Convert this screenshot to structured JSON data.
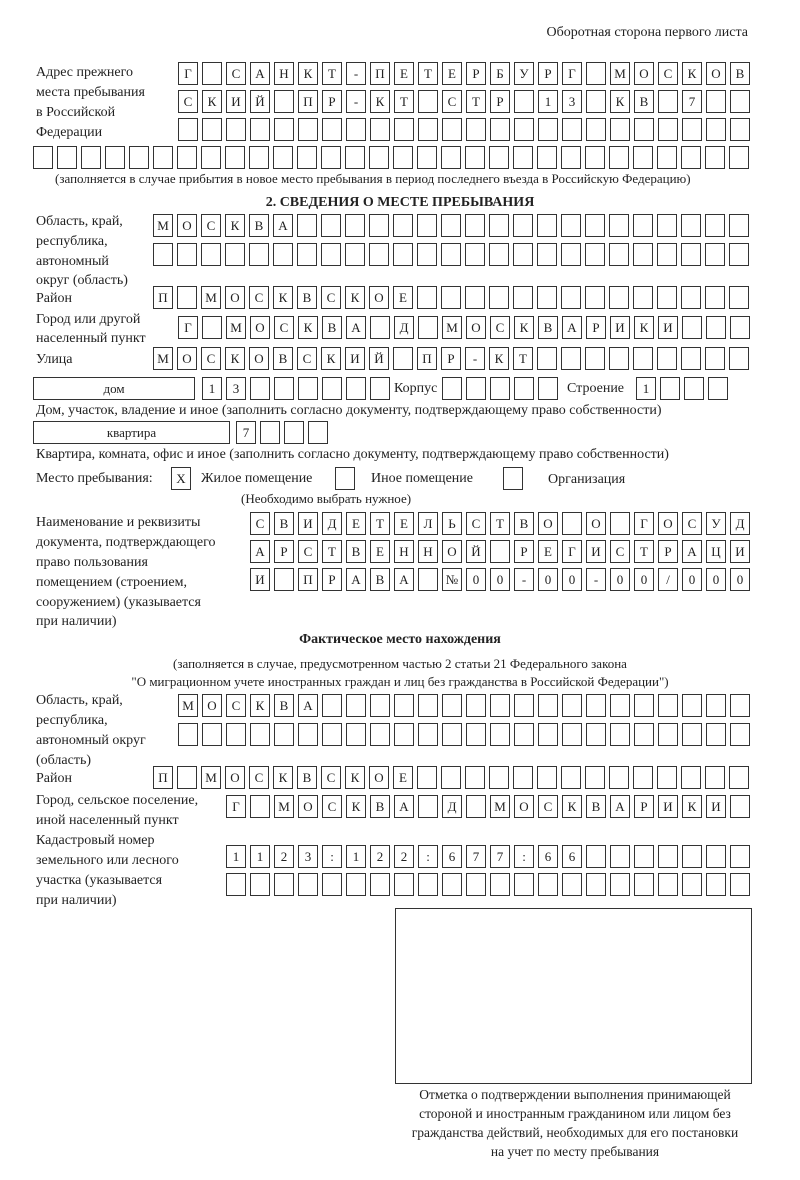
{
  "header": "Оборотная сторона первого листа",
  "prev_address": {
    "label": [
      "Адрес прежнего",
      "места пребывания",
      "в Российской",
      "Федерации"
    ],
    "rows": [
      [
        "Г",
        "",
        "С",
        "А",
        "Н",
        "К",
        "Т",
        "-",
        "П",
        "Е",
        "Т",
        "Е",
        "Р",
        "Б",
        "У",
        "Р",
        "Г",
        "",
        "М",
        "О",
        "С",
        "К",
        "О",
        "В"
      ],
      [
        "С",
        "К",
        "И",
        "Й",
        "",
        "П",
        "Р",
        "-",
        "К",
        "Т",
        "",
        "С",
        "Т",
        "Р",
        "",
        "1",
        "3",
        "",
        "К",
        "В",
        "",
        "7",
        "",
        ""
      ],
      [
        "",
        "",
        "",
        "",
        "",
        "",
        "",
        "",
        "",
        "",
        "",
        "",
        "",
        "",
        "",
        "",
        "",
        "",
        "",
        "",
        "",
        "",
        "",
        ""
      ],
      [
        "",
        "",
        "",
        "",
        "",
        "",
        "",
        "",
        "",
        "",
        "",
        "",
        "",
        "",
        "",
        "",
        "",
        "",
        "",
        "",
        "",
        "",
        "",
        "",
        "",
        "",
        "",
        "",
        "",
        ""
      ]
    ],
    "note": "(заполняется в случае прибытия в новое место пребывания в период последнего въезда в Российскую Федерацию)"
  },
  "section2": {
    "title": "2. СВЕДЕНИЯ О МЕСТЕ ПРЕБЫВАНИЯ",
    "oblast_label": [
      "Область, край,",
      "республика,",
      "автономный",
      "округ (область)"
    ],
    "oblast_rows": [
      [
        "М",
        "О",
        "С",
        "К",
        "В",
        "А",
        "",
        "",
        "",
        "",
        "",
        "",
        "",
        "",
        "",
        "",
        "",
        "",
        "",
        "",
        "",
        "",
        "",
        "",
        ""
      ],
      [
        "",
        "",
        "",
        "",
        "",
        "",
        "",
        "",
        "",
        "",
        "",
        "",
        "",
        "",
        "",
        "",
        "",
        "",
        "",
        "",
        "",
        "",
        "",
        "",
        ""
      ]
    ],
    "raion_label": "Район",
    "raion_row": [
      "П",
      "",
      "М",
      "О",
      "С",
      "К",
      "В",
      "С",
      "К",
      "О",
      "Е",
      "",
      "",
      "",
      "",
      "",
      "",
      "",
      "",
      "",
      "",
      "",
      "",
      "",
      ""
    ],
    "city_label": [
      "Город или другой",
      "населенный пункт"
    ],
    "city_row": [
      "Г",
      "",
      "М",
      "О",
      "С",
      "К",
      "В",
      "А",
      "",
      "Д",
      "",
      "М",
      "О",
      "С",
      "К",
      "В",
      "А",
      "Р",
      "И",
      "К",
      "И",
      "",
      "",
      ""
    ],
    "street_label": "Улица",
    "street_row": [
      "М",
      "О",
      "С",
      "К",
      "О",
      "В",
      "С",
      "К",
      "И",
      "Й",
      "",
      "П",
      "Р",
      "-",
      "К",
      "Т",
      "",
      "",
      "",
      "",
      "",
      "",
      "",
      "",
      ""
    ],
    "house_type": "дом",
    "house_cells": [
      "1",
      "3",
      "",
      "",
      "",
      "",
      "",
      ""
    ],
    "korpus_label": "Корпус",
    "korpus_cells": [
      "",
      "",
      "",
      "",
      ""
    ],
    "stroenie_label": "Строение",
    "stroenie_cells": [
      "1",
      "",
      "",
      ""
    ],
    "house_note": "Дом, участок, владение и иное (заполнить согласно документу, подтверждающему право собственности)",
    "flat_type": "квартира",
    "flat_cells": [
      "7",
      "",
      "",
      ""
    ],
    "flat_note": "Квартира, комната, офис и иное (заполнить согласно документу, подтверждающему право собственности)",
    "place_label": "Место пребывания:",
    "place_options": [
      {
        "label": "Жилое помещение",
        "mark": "X"
      },
      {
        "label": "Иное помещение",
        "mark": ""
      },
      {
        "label": "Организация",
        "mark": ""
      }
    ],
    "place_note": "(Необходимо выбрать нужное)",
    "doc_label": [
      "Наименование и реквизиты",
      "документа, подтверждающего",
      "право пользования",
      "помещением (строением,",
      "сооружением) (указывается",
      "при наличии)"
    ],
    "doc_rows": [
      [
        "С",
        "В",
        "И",
        "Д",
        "Е",
        "Т",
        "Е",
        "Л",
        "Ь",
        "С",
        "Т",
        "В",
        "О",
        "",
        "О",
        "",
        "Г",
        "О",
        "С",
        "У",
        "Д"
      ],
      [
        "А",
        "Р",
        "С",
        "Т",
        "В",
        "Е",
        "Н",
        "Н",
        "О",
        "Й",
        "",
        "Р",
        "Е",
        "Г",
        "И",
        "С",
        "Т",
        "Р",
        "А",
        "Ц",
        "И"
      ],
      [
        "И",
        "",
        "П",
        "Р",
        "А",
        "В",
        "А",
        "",
        "№",
        "0",
        "0",
        "-",
        "0",
        "0",
        "-",
        "0",
        "0",
        "/",
        "0",
        "0",
        "0"
      ]
    ]
  },
  "actual": {
    "title": "Фактическое место нахождения",
    "note": [
      "(заполняется в случае, предусмотренном частью 2 статьи 21 Федерального закона",
      "\"О миграционном учете иностранных граждан и лиц без гражданства в Российской Федерации\")"
    ],
    "oblast_label": [
      "Область, край,",
      "республика,",
      "автономный округ",
      "(область)"
    ],
    "oblast_rows": [
      [
        "М",
        "О",
        "С",
        "К",
        "В",
        "А",
        "",
        "",
        "",
        "",
        "",
        "",
        "",
        "",
        "",
        "",
        "",
        "",
        "",
        "",
        "",
        "",
        "",
        ""
      ],
      [
        "",
        "",
        "",
        "",
        "",
        "",
        "",
        "",
        "",
        "",
        "",
        "",
        "",
        "",
        "",
        "",
        "",
        "",
        "",
        "",
        "",
        "",
        "",
        ""
      ]
    ],
    "raion_label": "Район",
    "raion_row": [
      "П",
      "",
      "М",
      "О",
      "С",
      "К",
      "В",
      "С",
      "К",
      "О",
      "Е",
      "",
      "",
      "",
      "",
      "",
      "",
      "",
      "",
      "",
      "",
      "",
      "",
      "",
      ""
    ],
    "city_label": [
      "Город, сельское поселение,",
      "иной населенный пункт"
    ],
    "city_row": [
      "Г",
      "",
      "М",
      "О",
      "С",
      "К",
      "В",
      "А",
      "",
      "Д",
      "",
      "М",
      "О",
      "С",
      "К",
      "В",
      "А",
      "Р",
      "И",
      "К",
      "И",
      ""
    ],
    "cadastre_label": [
      "Кадастровый номер",
      "земельного или лесного",
      "участка (указывается",
      "при наличии)"
    ],
    "cadastre_rows": [
      [
        "1",
        "1",
        "2",
        "3",
        ":",
        "1",
        "2",
        "2",
        ":",
        "6",
        "7",
        "7",
        ":",
        "6",
        "6",
        "",
        "",
        "",
        "",
        "",
        "",
        ""
      ],
      [
        "",
        "",
        "",
        "",
        "",
        "",
        "",
        "",
        "",
        "",
        "",
        "",
        "",
        "",
        "",
        "",
        "",
        "",
        "",
        "",
        "",
        ""
      ]
    ]
  },
  "stamp_caption": [
    "Отметка о подтверждении выполнения принимающей",
    "стороной и иностранным гражданином или лицом без",
    "гражданства действий, необходимых для его постановки",
    "на учет по месту пребывания"
  ]
}
